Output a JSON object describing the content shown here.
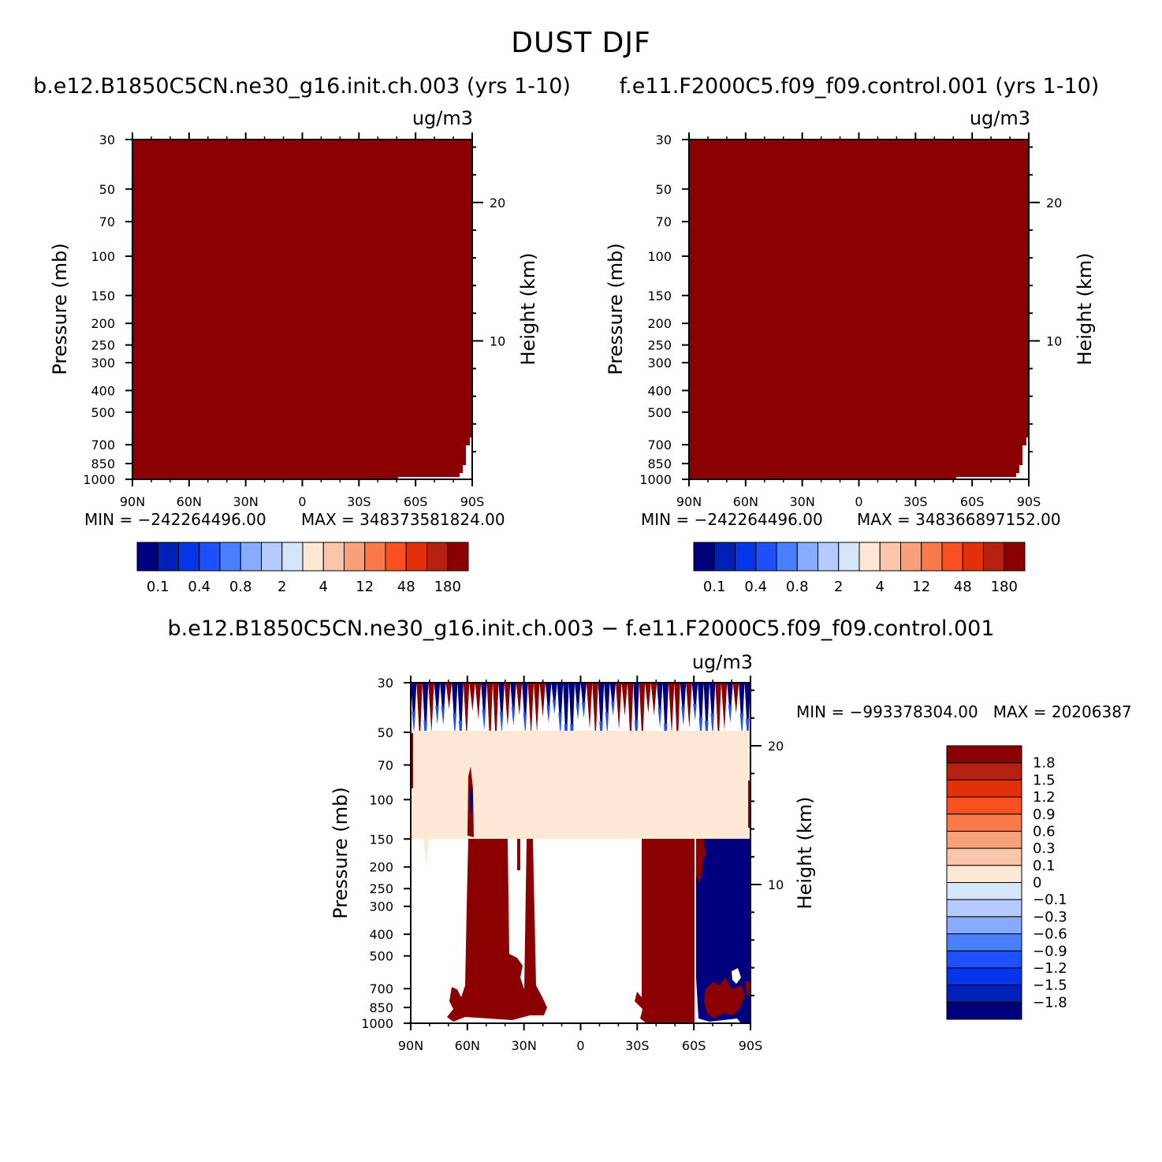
{
  "title": "DUST DJF",
  "colors": {
    "fill_dark_red": "#8B0000",
    "light_peach": "#FDE8D6",
    "scale": [
      "#00007F",
      "#0020B8",
      "#0535E8",
      "#1E50FF",
      "#4A80FF",
      "#88AAFF",
      "#B5CBFF",
      "#D5E6FB",
      "#FDE8D6",
      "#FBC5AA",
      "#F8A07A",
      "#F87A4A",
      "#FA4F20",
      "#E2300A",
      "#B52010",
      "#8B0000"
    ]
  },
  "chart_data": [
    {
      "type": "heatmap",
      "title": "b.e12.B1850C5CN.ne30_g16.init.ch.003 (yrs 1-10)",
      "units": "ug/m3",
      "ylabel": "Pressure (mb)",
      "y2label": "Height (km)",
      "x_ticks": [
        "90N",
        "60N",
        "30N",
        "0",
        "30S",
        "60S",
        "90S"
      ],
      "x_values": [
        90,
        60,
        30,
        0,
        -30,
        -60,
        -90
      ],
      "y_ticks": [
        30,
        50,
        70,
        100,
        150,
        200,
        250,
        300,
        400,
        500,
        700,
        850,
        1000
      ],
      "y_scale": "log",
      "ylim": [
        1000,
        30
      ],
      "y2_ticks": [
        20,
        10
      ],
      "min_label": "MIN = −242264496.00",
      "max_label": "MAX = 348373581824.00",
      "colorbar_labels": [
        "0.1",
        "0.4",
        "0.8",
        "2",
        "4",
        "12",
        "48",
        "180"
      ],
      "field": "uniform dark red (> 180) except a small white region near 90S below ~700 mb"
    },
    {
      "type": "heatmap",
      "title": "f.e11.F2000C5.f09_f09.control.001 (yrs 1-10)",
      "units": "ug/m3",
      "ylabel": "Pressure (mb)",
      "y2label": "Height (km)",
      "x_ticks": [
        "90N",
        "60N",
        "30N",
        "0",
        "30S",
        "60S",
        "90S"
      ],
      "x_values": [
        90,
        60,
        30,
        0,
        -30,
        -60,
        -90
      ],
      "y_ticks": [
        30,
        50,
        70,
        100,
        150,
        200,
        250,
        300,
        400,
        500,
        700,
        850,
        1000
      ],
      "y_scale": "log",
      "ylim": [
        1000,
        30
      ],
      "y2_ticks": [
        20,
        10
      ],
      "min_label": "MIN = −242264496.00",
      "max_label": "MAX = 348366897152.00",
      "colorbar_labels": [
        "0.1",
        "0.4",
        "0.8",
        "2",
        "4",
        "12",
        "48",
        "180"
      ],
      "field": "uniform dark red (> 180) except a small white region near 90S below ~700 mb"
    },
    {
      "type": "heatmap",
      "title": "b.e12.B1850C5CN.ne30_g16.init.ch.003 − f.e11.F2000C5.f09_f09.control.001",
      "units": "ug/m3",
      "ylabel": "Pressure (mb)",
      "y2label": "Height (km)",
      "x_ticks": [
        "90N",
        "60N",
        "30N",
        "0",
        "30S",
        "60S",
        "90S"
      ],
      "x_values": [
        90,
        60,
        30,
        0,
        -30,
        -60,
        -90
      ],
      "y_ticks": [
        30,
        50,
        70,
        100,
        150,
        200,
        250,
        300,
        400,
        500,
        700,
        850,
        1000
      ],
      "y_scale": "log",
      "ylim": [
        1000,
        30
      ],
      "y2_ticks": [
        20,
        10
      ],
      "stats_label": "MIN = −993378304.00   MAX = 20206387",
      "colorbar_labels": [
        "1.8",
        "1.5",
        "1.2",
        "0.9",
        "0.6",
        "0.3",
        "0.1",
        "0",
        "−0.1",
        "−0.3",
        "−0.6",
        "−0.9",
        "−1.2",
        "−1.5",
        "−1.8"
      ],
      "regions": [
        {
          "band": "30-50 mb",
          "value": "alternating positive/negative streaks"
        },
        {
          "band": "50-150 mb",
          "value": "0 to 0.1 (light peach)"
        },
        {
          "band": "150-1000 mb, 60N-40N",
          "value": "> 1.8"
        },
        {
          "band": "150-1000 mb, 33S-60S",
          "value": "> 1.8"
        },
        {
          "band": "150-1000 mb, 60S-90S",
          "value": "< -1.8"
        }
      ]
    }
  ]
}
